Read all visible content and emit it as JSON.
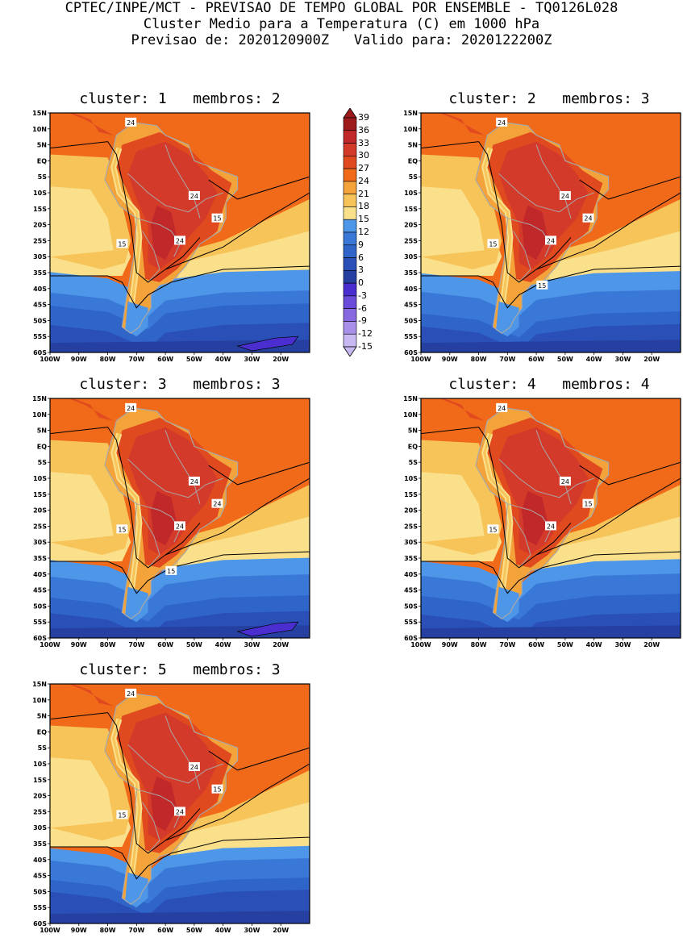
{
  "header": {
    "line1": "CPTEC/INPE/MCT - PREVISAO DE TEMPO GLOBAL POR ENSEMBLE - TQ0126L028",
    "line2": "Cluster Medio para a Temperatura (C) em 1000 hPa",
    "line3": "Previsao de: 2020120900Z   Valido para: 2020122200Z"
  },
  "lat_labels": [
    "15N",
    "10N",
    "5N",
    "EQ",
    "5S",
    "10S",
    "15S",
    "20S",
    "25S",
    "30S",
    "35S",
    "40S",
    "45S",
    "50S",
    "55S",
    "60S"
  ],
  "lon_labels": [
    "100W",
    "90W",
    "80W",
    "70W",
    "60W",
    "50W",
    "40W",
    "30W",
    "20W"
  ],
  "colorbar": {
    "labels": [
      "39",
      "36",
      "33",
      "30",
      "27",
      "24",
      "21",
      "18",
      "15",
      "12",
      "9",
      "6",
      "3",
      "0",
      "-3",
      "-6",
      "-9",
      "-12",
      "-15"
    ],
    "colors": [
      "#9c1a1a",
      "#c0282a",
      "#d43a2a",
      "#e04a1e",
      "#f06a1a",
      "#f3a33a",
      "#f7c45a",
      "#fbe08c",
      "#4d96e8",
      "#3a78d8",
      "#2f64c8",
      "#2a50b8",
      "#2540a0",
      "#4a2ed0",
      "#6a4ad8",
      "#8868e0",
      "#a890ea",
      "#c8b8f2"
    ]
  },
  "panels": [
    {
      "title": "cluster: 1   membros: 2",
      "contour_labels": [
        "24",
        "24",
        "24",
        "15",
        "15"
      ]
    },
    {
      "title": "cluster: 2   membros: 3",
      "contour_labels": [
        "24",
        "24",
        "24",
        "24",
        "15",
        "15"
      ]
    },
    {
      "title": "cluster: 3   membros: 3",
      "contour_labels": [
        "24",
        "24",
        "24",
        "24",
        "15",
        "15"
      ]
    },
    {
      "title": "cluster: 4   membros: 4",
      "contour_labels": [
        "24",
        "24",
        "24",
        "15",
        "15"
      ]
    },
    {
      "title": "cluster: 5   membros: 3",
      "contour_labels": [
        "24",
        "24",
        "24",
        "15",
        "15"
      ]
    }
  ]
}
